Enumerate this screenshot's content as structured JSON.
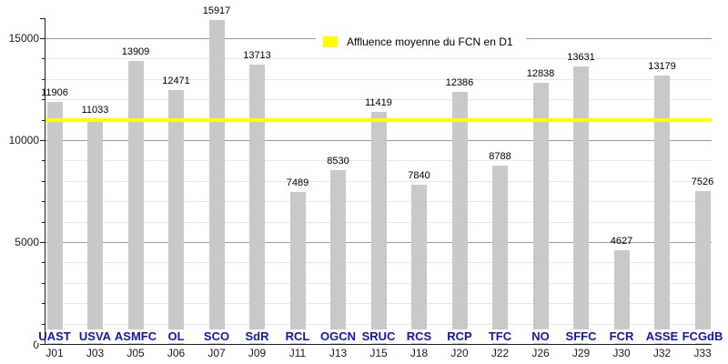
{
  "chart_data": {
    "type": "bar",
    "title": "",
    "xlabel": "",
    "ylabel": "",
    "categories": [
      "UAST",
      "USVA",
      "ASMFC",
      "OL",
      "SCO",
      "SdR",
      "RCL",
      "OGCN",
      "SRUC",
      "RCS",
      "RCP",
      "TFC",
      "NO",
      "SFFC",
      "FCR",
      "ASSE",
      "FCGdB"
    ],
    "category_days": [
      "J01",
      "J03",
      "J05",
      "J06",
      "J07",
      "J09",
      "J11",
      "J13",
      "J15",
      "J18",
      "J20",
      "J22",
      "J26",
      "J29",
      "J30",
      "J32",
      "J33"
    ],
    "values": [
      11906,
      11033,
      13909,
      12471,
      15917,
      13713,
      7489,
      8530,
      11419,
      7840,
      12386,
      8788,
      12838,
      13631,
      4627,
      13179,
      7526
    ],
    "ylim": [
      0,
      16000
    ],
    "y_ticks": [
      {
        "label": "0",
        "value": 0
      },
      {
        "label": "5000",
        "value": 5000
      },
      {
        "label": "10000",
        "value": 10000
      },
      {
        "label": "15000",
        "value": 15000
      }
    ],
    "y_minor_step": 1000,
    "y_major_step": 5000,
    "grid": true,
    "legend_position": "top-center",
    "average_line": {
      "label": "Affluence moyenne du FCN en D1",
      "value": 11012,
      "color": "#ffff00"
    }
  },
  "colors": {
    "background": "#ffffff",
    "bar": "#c9c9c9",
    "grid_minor": "#e7e7e7",
    "grid_major": "#9a9a9a",
    "axis": "#1f1f1f",
    "opponent_text": "#1414b8",
    "value_text": "#000000",
    "day_text": "#1a1a1a",
    "average_line": "#ffff00"
  }
}
